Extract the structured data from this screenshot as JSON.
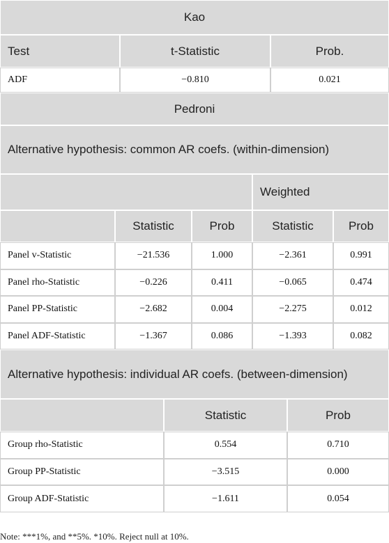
{
  "kao": {
    "title": "Kao",
    "header": [
      "Test",
      "t-Statistic",
      "Prob."
    ],
    "rows": [
      [
        "ADF",
        "−0.810",
        "0.021"
      ]
    ]
  },
  "pedroni": {
    "title": "Pedroni",
    "within": {
      "title": "Alternative hypothesis: common AR coefs. (within-dimension)",
      "group_header": "Weighted",
      "header": [
        "Statistic",
        "Prob",
        "Statistic",
        "Prob"
      ],
      "rows": [
        [
          "Panel v-Statistic",
          "−21.536",
          "1.000",
          "−2.361",
          "0.991"
        ],
        [
          "Panel rho-Statistic",
          "−0.226",
          "0.411",
          "−0.065",
          "0.474"
        ],
        [
          "Panel PP-Statistic",
          "−2.682",
          "0.004",
          "−2.275",
          "0.012"
        ],
        [
          "Panel ADF-Statistic",
          "−1.367",
          "0.086",
          "−1.393",
          "0.082"
        ]
      ]
    },
    "between": {
      "title": "Alternative hypothesis: individual AR coefs. (between-dimension)",
      "header": [
        "Statistic",
        "Prob"
      ],
      "rows": [
        [
          "Group rho-Statistic",
          "0.554",
          "0.710"
        ],
        [
          "Group PP-Statistic",
          "−3.515",
          "0.000"
        ],
        [
          "Group ADF-Statistic",
          "−1.611",
          "0.054"
        ]
      ]
    }
  },
  "note": "Note: ***1%, and **5%. *10%. Reject null at 10%."
}
